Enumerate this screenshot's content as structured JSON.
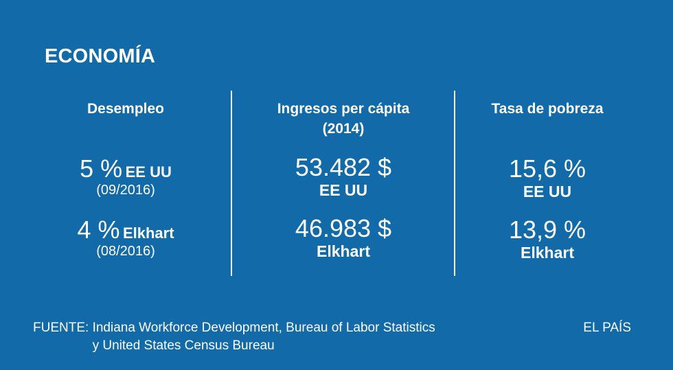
{
  "title": "ECONOMÍA",
  "columns": [
    {
      "heading": "Desempleo",
      "rows": [
        {
          "value": "5 %",
          "label": "EE UU",
          "date": "(09/2016)"
        },
        {
          "value": "4 %",
          "label": "Elkhart",
          "date": "(08/2016)"
        }
      ]
    },
    {
      "heading_line1": "Ingresos per cápita",
      "heading_line2": "(2014)",
      "rows": [
        {
          "value": "53.482 $",
          "label": "EE UU"
        },
        {
          "value": "46.983 $",
          "label": "Elkhart"
        }
      ]
    },
    {
      "heading": "Tasa de pobreza",
      "rows": [
        {
          "value": "15,6 %",
          "label": "EE UU"
        },
        {
          "value": "13,9 %",
          "label": "Elkhart"
        }
      ]
    }
  ],
  "source": {
    "prefix": "FUENTE:",
    "line1": "Indiana Workforce Development, Bureau of Labor Statistics",
    "line2": "y United States Census Bureau"
  },
  "brand": "EL PAÍS",
  "colors": {
    "background": "#126aa8",
    "text": "#ffffff"
  }
}
